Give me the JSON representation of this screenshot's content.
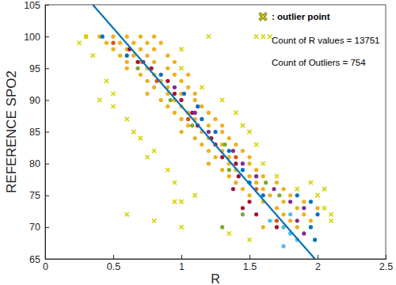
{
  "chart_data": {
    "type": "scatter",
    "x_label": "R",
    "y_label": "REFERENCE SPO2",
    "xlim": [
      0,
      2.5
    ],
    "ylim": [
      65,
      105
    ],
    "xticks": [
      0,
      0.5,
      1,
      1.5,
      2,
      2.5
    ],
    "yticks": [
      65,
      70,
      75,
      80,
      85,
      90,
      95,
      100,
      105
    ],
    "grid": false,
    "annotations": [
      {
        "text": ": outlier point",
        "marker": "x"
      },
      {
        "text": "Count of R values = 13751"
      },
      {
        "text": "Count of Outliers = 754"
      }
    ],
    "series": [
      {
        "type": "scatter",
        "marker": "circle",
        "color": "#EDB120",
        "x": [
          0.3,
          0.4,
          0.5,
          0.6,
          0.7,
          0.8,
          0.45,
          0.55,
          0.65,
          0.75,
          0.85,
          0.5,
          0.6,
          0.7,
          0.8,
          0.55,
          0.65,
          0.75,
          0.9,
          0.6,
          0.7,
          0.8,
          0.95,
          0.6,
          0.75,
          0.9,
          0.7,
          0.8,
          0.95,
          1.05,
          0.75,
          0.85,
          1.0,
          0.8,
          0.9,
          1.05,
          0.75,
          0.9,
          1.0,
          1.1,
          0.85,
          0.95,
          1.1,
          0.9,
          1.0,
          1.15,
          0.95,
          1.05,
          1.2,
          1.0,
          1.1,
          1.25,
          1.05,
          1.2,
          1.3,
          1.0,
          1.15,
          1.3,
          1.1,
          1.2,
          1.35,
          1.15,
          1.3,
          1.4,
          1.2,
          1.3,
          1.45,
          1.25,
          1.35,
          1.5,
          1.2,
          1.35,
          1.5,
          1.3,
          1.4,
          1.55,
          1.35,
          1.5,
          1.6,
          1.4,
          1.55,
          1.7,
          1.45,
          1.6,
          1.75,
          1.5,
          1.65,
          1.8,
          1.6,
          1.75,
          1.9,
          1.7,
          1.85,
          2.0,
          1.75,
          1.9,
          1.8,
          1.95,
          1.6,
          1.75,
          1.85
        ],
        "values": [
          100,
          100,
          100,
          100,
          100,
          100,
          99,
          99,
          99,
          99,
          99,
          98,
          98,
          98,
          98,
          97,
          97,
          97,
          97,
          96,
          96,
          96,
          96,
          95,
          95,
          95,
          94,
          94,
          94,
          94,
          93,
          93,
          93,
          92,
          92,
          92,
          91,
          91,
          91,
          91,
          90,
          90,
          90,
          89,
          89,
          89,
          88,
          88,
          88,
          87,
          87,
          87,
          86,
          86,
          86,
          85,
          85,
          85,
          84,
          84,
          84,
          83,
          83,
          83,
          82,
          82,
          82,
          81,
          81,
          81,
          80,
          80,
          80,
          79,
          79,
          79,
          78,
          78,
          78,
          77,
          77,
          77,
          76,
          76,
          76,
          75,
          75,
          75,
          74,
          74,
          74,
          73,
          73,
          73,
          72,
          72,
          71,
          71,
          70,
          70,
          70
        ]
      },
      {
        "type": "scatter",
        "marker": "circle",
        "color": "#A2142F",
        "x": [
          0.62,
          0.68,
          0.78,
          0.9,
          0.95,
          1.0,
          1.08,
          1.12,
          1.22,
          1.25,
          1.3,
          1.4,
          1.42,
          1.38,
          1.5,
          1.45,
          1.55,
          1.7
        ],
        "values": [
          98,
          96,
          95,
          93,
          91,
          90,
          88,
          86,
          84,
          83,
          81,
          80,
          78,
          76,
          74,
          73,
          72,
          70
        ]
      },
      {
        "type": "scatter",
        "marker": "circle",
        "color": "#0072BD",
        "x": [
          0.42,
          0.6,
          0.85,
          1.02,
          1.12,
          1.15,
          1.25,
          1.35,
          1.45,
          1.5,
          1.6,
          1.85,
          1.95,
          2.0,
          1.95,
          1.98
        ],
        "values": [
          100,
          97,
          94,
          91,
          89,
          87,
          85,
          82,
          79,
          77,
          75,
          75,
          74,
          72,
          70,
          68
        ]
      },
      {
        "type": "scatter",
        "marker": "circle",
        "color": "#7E2F8E",
        "x": [
          0.72,
          0.95,
          1.1,
          1.2,
          1.38,
          1.45,
          1.55,
          1.68,
          1.8,
          1.9,
          1.85,
          1.9
        ],
        "values": [
          96,
          92,
          88,
          85,
          82,
          80,
          78,
          76,
          74,
          73,
          71,
          69
        ]
      },
      {
        "type": "scatter",
        "marker": "circle",
        "color": "#77AC30",
        "x": [
          0.68,
          0.92,
          1.08,
          1.32,
          1.35,
          1.62,
          1.72,
          1.45,
          1.3
        ],
        "values": [
          95,
          90,
          86,
          83,
          79,
          77,
          75,
          72,
          70
        ]
      },
      {
        "type": "scatter",
        "marker": "circle",
        "color": "#4DBEEE",
        "x": [
          1.8,
          1.65,
          1.75,
          1.8,
          1.85,
          1.75
        ],
        "values": [
          72,
          71,
          70,
          69,
          68,
          67
        ]
      },
      {
        "type": "scatter",
        "marker": "circle",
        "color": "#D95319",
        "x": [
          0.5,
          0.82,
          1.05,
          1.4,
          1.55,
          1.7
        ],
        "values": [
          99,
          93,
          87,
          81,
          76,
          71
        ]
      },
      {
        "type": "scatter",
        "marker": "x",
        "color": "#D4D400",
        "x": [
          0.3,
          1.2,
          1.55,
          1.6,
          1.65,
          0.25,
          1.0,
          0.35,
          1.0,
          0.45,
          1.15,
          0.5,
          0.4,
          1.3,
          0.5,
          1.4,
          0.6,
          1.45,
          0.65,
          1.5,
          0.7,
          1.55,
          0.8,
          0.75,
          1.6,
          0.9,
          1.7,
          0.95,
          1.85,
          1.1,
          1.0,
          2.05,
          0.6,
          0.8,
          2.1,
          1.0,
          0.95,
          1.35,
          1.5,
          2.1,
          2.0,
          2.05,
          1.95
        ],
        "values": [
          100,
          100,
          100,
          100,
          100,
          99,
          98,
          97,
          95,
          93,
          92,
          91,
          90,
          90,
          89,
          88,
          87,
          86,
          85,
          85,
          84,
          83,
          82,
          81,
          80,
          79,
          78,
          77,
          76,
          75,
          74,
          73,
          72,
          71,
          71,
          70,
          74,
          69,
          68,
          72,
          75,
          76,
          77
        ]
      },
      {
        "type": "line",
        "line_style": "solid",
        "color": "#0072BD",
        "x": [
          0.35,
          1.98
        ],
        "values": [
          105,
          65
        ]
      }
    ]
  }
}
